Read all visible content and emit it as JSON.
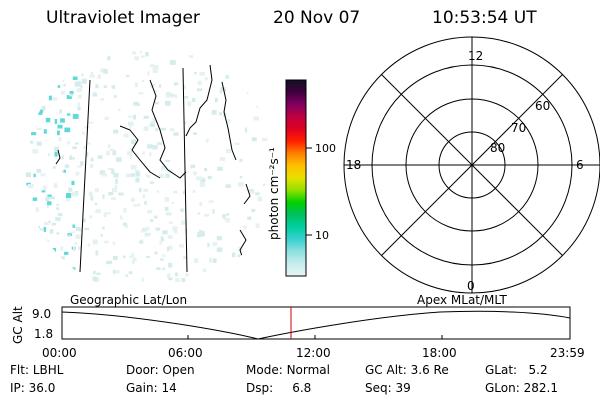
{
  "header": {
    "title": "Ultraviolet Imager",
    "date": "20 Nov 07",
    "time": "10:53:54 UT"
  },
  "colorbar": {
    "label": "photon cm⁻²s⁻¹",
    "ticks": [
      "100",
      "10"
    ],
    "colors": [
      "#e8f6f6",
      "#c8ecec",
      "#90e0e0",
      "#38d0d0",
      "#00d0a0",
      "#00c060",
      "#00d000",
      "#90e000",
      "#e8e000",
      "#ffc000",
      "#ff8000",
      "#ff2000",
      "#e00020",
      "#c00040",
      "#800060",
      "#400040",
      "#101020"
    ]
  },
  "polar": {
    "mlt_labels": [
      "12",
      "18",
      "6",
      "0"
    ],
    "lat_labels": [
      "60",
      "70",
      "80"
    ]
  },
  "track": {
    "left_label": "Geographic Lat/Lon",
    "right_label": "Apex MLat/MLT",
    "axis_title": "GC Alt",
    "y_ticks": [
      "9.0",
      "1.8"
    ],
    "x_ticks": [
      "00:00",
      "06:00",
      "12:00",
      "18:00",
      "23:59"
    ],
    "current_marker_color": "#d00000"
  },
  "info": {
    "row1": [
      {
        "key": "Flt:",
        "value": "LBHL"
      },
      {
        "key": "Door:",
        "value": "Open"
      },
      {
        "key": "Mode:",
        "value": "Normal"
      },
      {
        "key": "GC Alt:",
        "value": "3.6 Re"
      },
      {
        "key": "GLat:",
        "value": "5.2"
      }
    ],
    "row2": [
      {
        "key": "IP:",
        "value": "36.0"
      },
      {
        "key": "Gain:",
        "value": "14"
      },
      {
        "key": "Dsp:",
        "value": "6.8"
      },
      {
        "key": "Seq:",
        "value": "39"
      },
      {
        "key": "GLon:",
        "value": "282.1"
      }
    ]
  }
}
